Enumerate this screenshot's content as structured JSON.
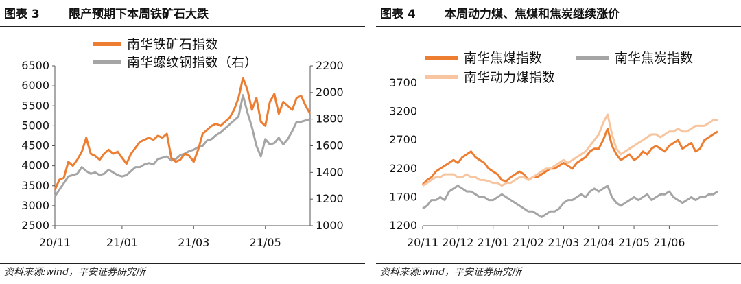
{
  "left": {
    "fig_label": "图表 3",
    "title": "限产预期下本周铁矿石大跌",
    "source": "资料来源:wind，平安证券研究所",
    "chart_data": {
      "type": "line",
      "dual_axis": true,
      "x_tick_labels": [
        "20/11",
        "21/01",
        "21/03",
        "21/05"
      ],
      "x_tick_index": [
        0,
        15,
        31,
        47
      ],
      "n_points": 58,
      "y_left": {
        "lim": [
          2500,
          6500
        ],
        "ticks": [
          2500,
          3000,
          3500,
          4000,
          4500,
          5000,
          5500,
          6000,
          6500
        ]
      },
      "y_right": {
        "lim": [
          1000,
          2200
        ],
        "ticks": [
          1000,
          1200,
          1400,
          1600,
          1800,
          2000,
          2200
        ]
      },
      "legend_position": "top",
      "series": [
        {
          "name": "南华铁矿石指数",
          "axis": "left",
          "color": "#ED7D31",
          "values": [
            3400,
            3650,
            3700,
            4100,
            4000,
            4150,
            4350,
            4700,
            4300,
            4250,
            4150,
            4300,
            4400,
            4300,
            4350,
            4200,
            4050,
            4300,
            4450,
            4600,
            4650,
            4700,
            4650,
            4750,
            4700,
            4800,
            4200,
            4100,
            4150,
            4300,
            4250,
            4100,
            4400,
            4800,
            4900,
            5000,
            5050,
            5000,
            5100,
            5200,
            5400,
            5700,
            6200,
            5900,
            5400,
            5700,
            5100,
            5000,
            5600,
            5800,
            5300,
            5600,
            5500,
            5400,
            5700,
            5750,
            5500,
            5300
          ]
        },
        {
          "name": "南华螺纹钢指数（右）",
          "axis": "right",
          "color": "#A5A5A5",
          "values": [
            1220,
            1270,
            1320,
            1370,
            1380,
            1390,
            1440,
            1410,
            1390,
            1400,
            1380,
            1390,
            1420,
            1400,
            1380,
            1370,
            1380,
            1410,
            1440,
            1440,
            1460,
            1470,
            1460,
            1500,
            1510,
            1520,
            1490,
            1500,
            1530,
            1540,
            1560,
            1570,
            1590,
            1600,
            1640,
            1650,
            1680,
            1700,
            1730,
            1760,
            1790,
            1820,
            1980,
            1850,
            1740,
            1600,
            1520,
            1650,
            1610,
            1620,
            1660,
            1610,
            1650,
            1710,
            1780,
            1780,
            1790,
            1800
          ]
        }
      ]
    }
  },
  "right": {
    "fig_label": "图表 4",
    "title": "本周动力煤、焦煤和焦炭继续涨价",
    "source": "资料来源:wind，平安证券研究所",
    "chart_data": {
      "type": "line",
      "x_tick_labels": [
        "20/11",
        "20/12",
        "21/01",
        "21/02",
        "21/03",
        "21/04",
        "21/05",
        "21/06"
      ],
      "x_tick_index": [
        0,
        8,
        16,
        24,
        32,
        40,
        48,
        56
      ],
      "n_points": 68,
      "y": {
        "lim": [
          1200,
          3700
        ],
        "ticks": [
          1200,
          1700,
          2200,
          2700,
          3200,
          3700
        ]
      },
      "legend_position": "top",
      "series": [
        {
          "name": "南华焦煤指数",
          "color": "#ED7D31",
          "values": [
            1920,
            2000,
            2050,
            2150,
            2200,
            2250,
            2300,
            2350,
            2300,
            2400,
            2450,
            2500,
            2400,
            2350,
            2300,
            2200,
            2150,
            2100,
            2000,
            1980,
            2050,
            2100,
            2150,
            2100,
            2000,
            2050,
            2050,
            2100,
            2150,
            2200,
            2200,
            2250,
            2300,
            2250,
            2200,
            2300,
            2350,
            2400,
            2500,
            2550,
            2550,
            2700,
            2900,
            2600,
            2450,
            2350,
            2400,
            2450,
            2350,
            2400,
            2500,
            2450,
            2550,
            2600,
            2550,
            2500,
            2600,
            2650,
            2700,
            2550,
            2600,
            2650,
            2500,
            2550,
            2700,
            2750,
            2800,
            2850
          ]
        },
        {
          "name": "南华焦炭指数",
          "color": "#A5A5A5",
          "values": [
            1500,
            1550,
            1650,
            1650,
            1700,
            1650,
            1800,
            1850,
            1900,
            1850,
            1800,
            1800,
            1750,
            1700,
            1700,
            1650,
            1650,
            1700,
            1750,
            1700,
            1650,
            1600,
            1550,
            1500,
            1450,
            1450,
            1400,
            1350,
            1400,
            1450,
            1450,
            1500,
            1600,
            1650,
            1650,
            1700,
            1750,
            1700,
            1800,
            1850,
            1800,
            1850,
            1900,
            1700,
            1600,
            1550,
            1600,
            1650,
            1700,
            1650,
            1700,
            1750,
            1650,
            1700,
            1750,
            1750,
            1800,
            1700,
            1650,
            1600,
            1650,
            1700,
            1650,
            1700,
            1700,
            1750,
            1750,
            1800
          ]
        },
        {
          "name": "南华动力煤指数",
          "color": "#F7C59F",
          "values": [
            1900,
            1950,
            2000,
            2050,
            2050,
            2100,
            2100,
            2100,
            2050,
            2050,
            2100,
            2050,
            2050,
            2000,
            2000,
            1980,
            1950,
            1950,
            1900,
            1950,
            1950,
            2000,
            2050,
            2050,
            2000,
            2050,
            2100,
            2150,
            2200,
            2200,
            2250,
            2300,
            2350,
            2300,
            2350,
            2400,
            2450,
            2500,
            2600,
            2700,
            2800,
            3000,
            3150,
            2800,
            2550,
            2450,
            2500,
            2550,
            2600,
            2650,
            2700,
            2750,
            2800,
            2800,
            2750,
            2800,
            2850,
            2850,
            2900,
            2850,
            2850,
            2900,
            2950,
            2950,
            2950,
            3000,
            3050,
            3050
          ]
        }
      ]
    }
  }
}
